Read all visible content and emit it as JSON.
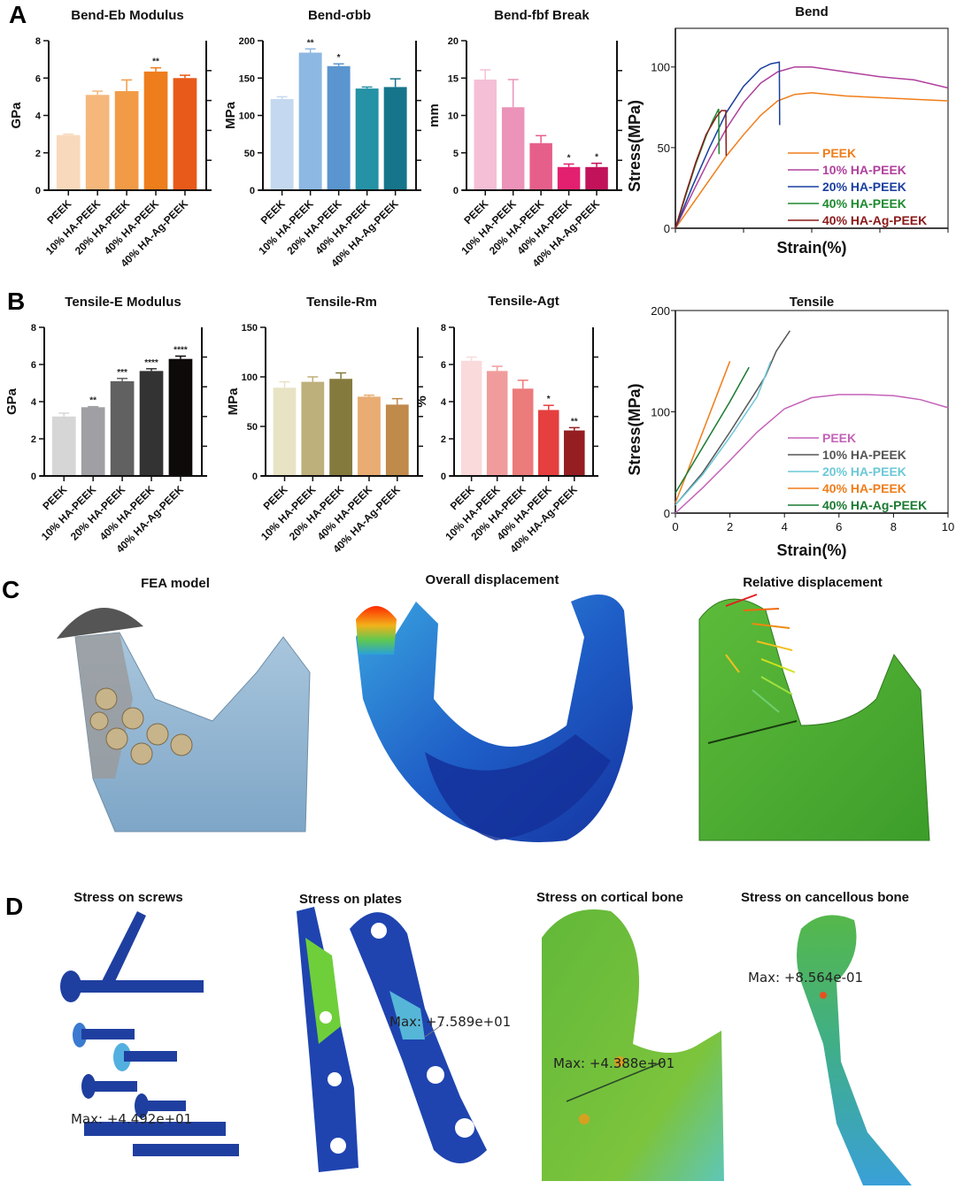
{
  "panel_labels": [
    "A",
    "B",
    "C",
    "D"
  ],
  "chart_data": [
    {
      "type": "bar",
      "title": "Bend-Eb Modulus",
      "ylabel": "GPa",
      "ylim": [
        0,
        8
      ],
      "yticks": [
        0,
        2,
        4,
        6,
        8
      ],
      "categories": [
        "PEEK",
        "10% HA-PEEK",
        "20% HA-PEEK",
        "40% HA-PEEK",
        "40% HA-Ag-PEEK"
      ],
      "values": [
        2.95,
        5.1,
        5.3,
        6.35,
        6.0
      ],
      "errors": [
        0.05,
        0.2,
        0.6,
        0.2,
        0.15
      ],
      "significance": [
        "",
        "",
        "",
        "**",
        ""
      ],
      "colors": [
        "#f9d9bb",
        "#f5b77c",
        "#f29b47",
        "#ee7d1c",
        "#e85a1a"
      ]
    },
    {
      "type": "bar",
      "title": "Bend-σbb",
      "ylabel": "MPa",
      "ylim": [
        0,
        200
      ],
      "yticks": [
        0,
        50,
        100,
        150,
        200
      ],
      "categories": [
        "PEEK",
        "10% HA-PEEK",
        "20% HA-PEEK",
        "40% HA-PEEK",
        "40% HA-Ag-PEEK"
      ],
      "values": [
        122,
        184,
        166,
        136,
        138
      ],
      "errors": [
        3,
        5,
        3,
        2,
        11
      ],
      "significance": [
        "",
        "**",
        "*",
        "",
        ""
      ],
      "colors": [
        "#c4d9ef",
        "#8db8e3",
        "#5a95cf",
        "#2592a6",
        "#16758a"
      ]
    },
    {
      "type": "bar",
      "title": "Bend-fbf Break",
      "ylabel": "mm",
      "ylim": [
        0,
        20
      ],
      "yticks": [
        0,
        5,
        10,
        15,
        20
      ],
      "categories": [
        "PEEK",
        "10% HA-PEEK",
        "20% HA-PEEK",
        "40% HA-PEEK",
        "40% HA-Ag-PEEK"
      ],
      "values": [
        14.8,
        11.1,
        6.3,
        3.1,
        3.1
      ],
      "errors": [
        1.3,
        3.7,
        1.0,
        0.4,
        0.5
      ],
      "significance": [
        "",
        "",
        "",
        "*",
        "*"
      ],
      "colors": [
        "#f5bfd6",
        "#eb93b9",
        "#e65f8b",
        "#e3206f",
        "#c1125a"
      ]
    },
    {
      "type": "line",
      "title": "Bend",
      "xlabel": "Strain(%)",
      "ylabel": "Stress(MPa)",
      "xlim": [
        0,
        8
      ],
      "ylim": [
        0,
        124
      ],
      "xticks": [
        0,
        2,
        4,
        6,
        8
      ],
      "xtick_labels_shown": false,
      "yticks": [
        0,
        50,
        100
      ],
      "legend": "right",
      "series": [
        {
          "name": "PEEK",
          "color": "#f07d1a",
          "points": [
            [
              0,
              0
            ],
            [
              0.5,
              15
            ],
            [
              1,
              30
            ],
            [
              1.5,
              45
            ],
            [
              2,
              58
            ],
            [
              2.5,
              70
            ],
            [
              3,
              79
            ],
            [
              3.5,
              83
            ],
            [
              4,
              84
            ],
            [
              5,
              82
            ],
            [
              6,
              81
            ],
            [
              7,
              80
            ],
            [
              8,
              79
            ]
          ]
        },
        {
          "name": "10% HA-PEEK",
          "color": "#b0409e",
          "points": [
            [
              0,
              0
            ],
            [
              0.5,
              22
            ],
            [
              1,
              43
            ],
            [
              1.5,
              62
            ],
            [
              2,
              78
            ],
            [
              2.5,
              90
            ],
            [
              3,
              97
            ],
            [
              3.5,
              100
            ],
            [
              4,
              100
            ],
            [
              5,
              97
            ],
            [
              6,
              94
            ],
            [
              7,
              92
            ],
            [
              8,
              87
            ]
          ]
        },
        {
          "name": "20% HA-PEEK",
          "color": "#1a3ea0",
          "points": [
            [
              0,
              0
            ],
            [
              0.5,
              26
            ],
            [
              1,
              50
            ],
            [
              1.5,
              72
            ],
            [
              2,
              88
            ],
            [
              2.5,
              99
            ],
            [
              2.8,
              102
            ],
            [
              3.05,
              103
            ],
            [
              3.06,
              64
            ]
          ]
        },
        {
          "name": "40% HA-PEEK",
          "color": "#1e8a2e",
          "points": [
            [
              0,
              0
            ],
            [
              0.3,
              20
            ],
            [
              0.6,
              40
            ],
            [
              0.9,
              57
            ],
            [
              1.1,
              67
            ],
            [
              1.27,
              74
            ],
            [
              1.28,
              46
            ]
          ]
        },
        {
          "name": "40% HA-Ag-PEEK",
          "color": "#8b1a1a",
          "points": [
            [
              0,
              0
            ],
            [
              0.3,
              21
            ],
            [
              0.6,
              41
            ],
            [
              0.9,
              58
            ],
            [
              1.2,
              69
            ],
            [
              1.35,
              73
            ],
            [
              1.48,
              73
            ],
            [
              1.49,
              45
            ]
          ]
        }
      ]
    },
    {
      "type": "bar",
      "title": "Tensile-E Modulus",
      "ylabel": "GPa",
      "ylim": [
        0,
        8
      ],
      "yticks": [
        0,
        2,
        4,
        6,
        8
      ],
      "categories": [
        "PEEK",
        "10% HA-PEEK",
        "20% HA-PEEK",
        "40% HA-PEEK",
        "40% HA-Ag-PEEK"
      ],
      "values": [
        3.2,
        3.7,
        5.1,
        5.65,
        6.3
      ],
      "errors": [
        0.18,
        0.03,
        0.15,
        0.12,
        0.15
      ],
      "significance": [
        "",
        "**",
        "***",
        "****",
        "****"
      ],
      "colors": [
        "#d6d6d6",
        "#a0a0a4",
        "#616161",
        "#333333",
        "#0e0a0a"
      ]
    },
    {
      "type": "bar",
      "title": "Tensile-Rm",
      "ylabel": "MPa",
      "ylim": [
        0,
        150
      ],
      "yticks": [
        0,
        50,
        100,
        150
      ],
      "categories": [
        "PEEK",
        "10% HA-PEEK",
        "20% HA-PEEK",
        "40% HA-PEEK",
        "40% HA-Ag-PEEK"
      ],
      "values": [
        89,
        95,
        98,
        80,
        72
      ],
      "errors": [
        6,
        5,
        6,
        1.5,
        6
      ],
      "significance": [
        "",
        "",
        "",
        "",
        ""
      ],
      "colors": [
        "#e8e3c4",
        "#beb07b",
        "#857a3e",
        "#e9ac72",
        "#c08a4b"
      ]
    },
    {
      "type": "bar",
      "title": "Tensile-Agt",
      "ylabel": "%",
      "ylim": [
        0,
        8
      ],
      "yticks": [
        0,
        2,
        4,
        6,
        8
      ],
      "categories": [
        "PEEK",
        "10% HA-PEEK",
        "20% HA-PEEK",
        "40% HA-PEEK",
        "40% HA-Ag-PEEK"
      ],
      "values": [
        6.2,
        5.65,
        4.7,
        3.55,
        2.45
      ],
      "errors": [
        0.2,
        0.25,
        0.45,
        0.25,
        0.15
      ],
      "significance": [
        "",
        "",
        "",
        "*",
        "**"
      ],
      "colors": [
        "#fadadb",
        "#f09c9c",
        "#ec7b7b",
        "#e63f3f",
        "#951e22"
      ]
    },
    {
      "type": "line",
      "title": "Tensile",
      "xlabel": "Strain(%)",
      "ylabel": "Stress(MPa)",
      "xlim": [
        0,
        10
      ],
      "ylim": [
        0,
        200
      ],
      "xticks": [
        0,
        2,
        4,
        6,
        8,
        10
      ],
      "xtick_labels_shown": true,
      "yticks": [
        0,
        100,
        200
      ],
      "legend": "right",
      "series": [
        {
          "name": "PEEK",
          "color": "#c462b8",
          "points": [
            [
              0,
              0
            ],
            [
              1,
              25
            ],
            [
              2,
              52
            ],
            [
              3,
              80
            ],
            [
              4,
              103
            ],
            [
              5,
              114
            ],
            [
              6,
              117
            ],
            [
              7,
              117
            ],
            [
              8,
              116
            ],
            [
              9,
              112
            ],
            [
              10,
              104
            ]
          ]
        },
        {
          "name": "10% HA-PEEK",
          "color": "#555555",
          "points": [
            [
              0,
              8
            ],
            [
              1,
              40
            ],
            [
              2,
              80
            ],
            [
              3,
              122
            ],
            [
              3.3,
              135
            ],
            [
              3.7,
              160
            ],
            [
              4,
              172
            ],
            [
              4.2,
              180
            ]
          ]
        },
        {
          "name": "20% HA-PEEK",
          "color": "#6cc8d8",
          "points": [
            [
              0,
              8
            ],
            [
              1,
              38
            ],
            [
              2,
              75
            ],
            [
              3,
              115
            ],
            [
              3.5,
              150
            ]
          ]
        },
        {
          "name": "40% HA-PEEK",
          "color": "#f07d1a",
          "points": [
            [
              0,
              10
            ],
            [
              0.5,
              45
            ],
            [
              1,
              80
            ],
            [
              1.5,
              115
            ],
            [
              2,
              150
            ]
          ]
        },
        {
          "name": "40% HA-Ag-PEEK",
          "color": "#1a7a30",
          "points": [
            [
              0,
              20
            ],
            [
              1,
              65
            ],
            [
              2,
              110
            ],
            [
              2.7,
              144
            ]
          ]
        }
      ]
    }
  ],
  "panel_c": {
    "titles": [
      "FEA model",
      "Overall displacement",
      "Relative displacement"
    ]
  },
  "panel_d": {
    "titles": [
      "Stress on screws",
      "Stress on plates",
      "Stress on cortical bone",
      "Stress on cancellous bone"
    ],
    "max_labels": [
      "Max: +4.492e+01",
      "Max: +7.589e+01",
      "Max: +4.388e+01",
      "Max: +8.564e-01"
    ]
  }
}
